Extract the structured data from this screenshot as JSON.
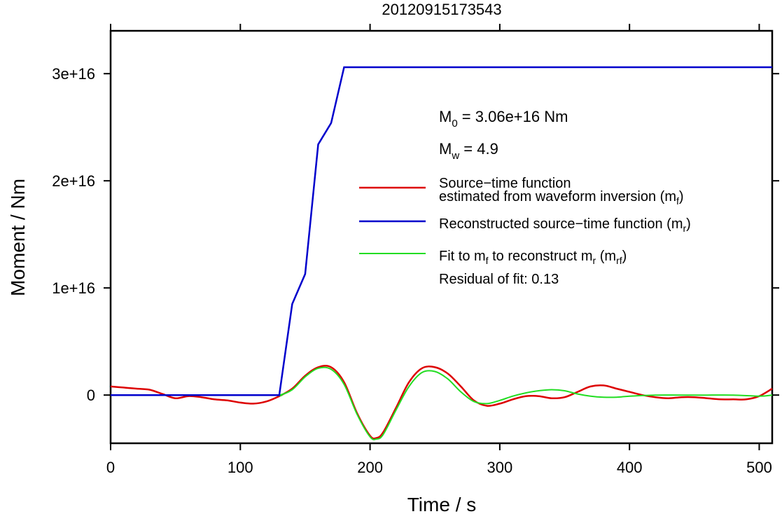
{
  "chart_data": {
    "type": "line",
    "title": "20120915173543",
    "xlabel": "Time / s",
    "ylabel": "Moment / Nm",
    "xlim": [
      0,
      510
    ],
    "ylim": [
      -4500000000000000.0,
      3.4e+16
    ],
    "x_ticks": [
      0,
      100,
      200,
      300,
      400,
      500
    ],
    "x_tick_labels": [
      "0",
      "100",
      "200",
      "300",
      "400",
      "500"
    ],
    "y_ticks": [
      0,
      1e+16,
      2e+16,
      3e+16
    ],
    "y_tick_labels": [
      "0",
      "1e+16",
      "2e+16",
      "3e+16"
    ],
    "grid": false,
    "legend_placement": "right",
    "annotations": {
      "m0_base": "M",
      "m0_sub": "0",
      "m0_rest": " = 3.06e+16 Nm",
      "mw_base": "M",
      "mw_sub": "w",
      "mw_rest": " = 4.9",
      "residual": "Residual of fit: 0.13"
    },
    "legend": [
      {
        "color": "#dd0000",
        "line1": "Source−time function",
        "line2_text": "estimated from waveform inversion (m",
        "line2_sub": "f",
        "line2_end": ")"
      },
      {
        "color": "#0000cc",
        "line1_text": "Reconstructed source−time function (m",
        "line1_sub": "r",
        "line1_end": ")"
      },
      {
        "color": "#22dd22",
        "t1": "Fit to m",
        "s1": "f",
        "t2": " to reconstruct m",
        "s2": "r",
        "t3": " (m",
        "s3": "rf",
        "t4": ")"
      }
    ],
    "series": [
      {
        "key": "mf",
        "color": "#dd0000",
        "x": [
          0,
          10,
          20,
          30,
          40,
          50,
          60,
          70,
          80,
          90,
          100,
          110,
          120,
          130,
          140,
          150,
          160,
          170,
          180,
          190,
          200,
          205,
          210,
          220,
          230,
          240,
          250,
          260,
          270,
          280,
          290,
          300,
          310,
          320,
          330,
          340,
          350,
          360,
          370,
          380,
          390,
          400,
          410,
          420,
          430,
          440,
          450,
          460,
          470,
          480,
          490,
          500,
          510
        ],
        "y": [
          800000000000000.0,
          700000000000000.0,
          600000000000000.0,
          500000000000000.0,
          100000000000000.0,
          -300000000000000.0,
          -100000000000000.0,
          -200000000000000.0,
          -400000000000000.0,
          -500000000000000.0,
          -700000000000000.0,
          -800000000000000.0,
          -600000000000000.0,
          -100000000000000.0,
          600000000000000.0,
          1800000000000000.0,
          2600000000000000.0,
          2600000000000000.0,
          1200000000000000.0,
          -1700000000000000.0,
          -3800000000000000.0,
          -4000000000000000.0,
          -3500000000000000.0,
          -1200000000000000.0,
          1200000000000000.0,
          2500000000000000.0,
          2600000000000000.0,
          2000000000000000.0,
          800000000000000.0,
          -500000000000000.0,
          -1000000000000000.0,
          -800000000000000.0,
          -400000000000000.0,
          -100000000000000.0,
          -100000000000000.0,
          -300000000000000.0,
          -200000000000000.0,
          300000000000000.0,
          800000000000000.0,
          900000000000000.0,
          600000000000000.0,
          300000000000000.0,
          0,
          -200000000000000.0,
          -300000000000000.0,
          -200000000000000.0,
          -200000000000000.0,
          -300000000000000.0,
          -400000000000000.0,
          -400000000000000.0,
          -400000000000000.0,
          -100000000000000.0,
          600000000000000.0
        ]
      },
      {
        "key": "mr",
        "color": "#0000cc",
        "x": [
          0,
          130,
          140,
          150,
          160,
          170,
          180,
          510
        ],
        "y": [
          0,
          0,
          8500000000000000.0,
          1.13e+16,
          2.34e+16,
          2.54e+16,
          3.06e+16,
          3.06e+16
        ]
      },
      {
        "key": "mrf",
        "color": "#22dd22",
        "x": [
          0,
          120,
          130,
          140,
          150,
          160,
          170,
          180,
          190,
          200,
          205,
          210,
          220,
          230,
          240,
          250,
          260,
          270,
          280,
          290,
          300,
          310,
          320,
          330,
          340,
          350,
          360,
          370,
          380,
          390,
          400,
          420,
          440,
          460,
          480,
          500,
          510
        ],
        "y": [
          0,
          0,
          0,
          500000000000000.0,
          1700000000000000.0,
          2500000000000000.0,
          2400000000000000.0,
          1000000000000000.0,
          -1800000000000000.0,
          -3900000000000000.0,
          -4100000000000000.0,
          -3700000000000000.0,
          -1400000000000000.0,
          800000000000000.0,
          2100000000000000.0,
          2200000000000000.0,
          1500000000000000.0,
          300000000000000.0,
          -600000000000000.0,
          -800000000000000.0,
          -500000000000000.0,
          -100000000000000.0,
          200000000000000.0,
          400000000000000.0,
          500000000000000.0,
          400000000000000.0,
          100000000000000.0,
          -100000000000000.0,
          -200000000000000.0,
          -200000000000000.0,
          -100000000000000.0,
          0,
          0,
          0,
          0,
          -100000000000000.0,
          0
        ]
      }
    ]
  }
}
